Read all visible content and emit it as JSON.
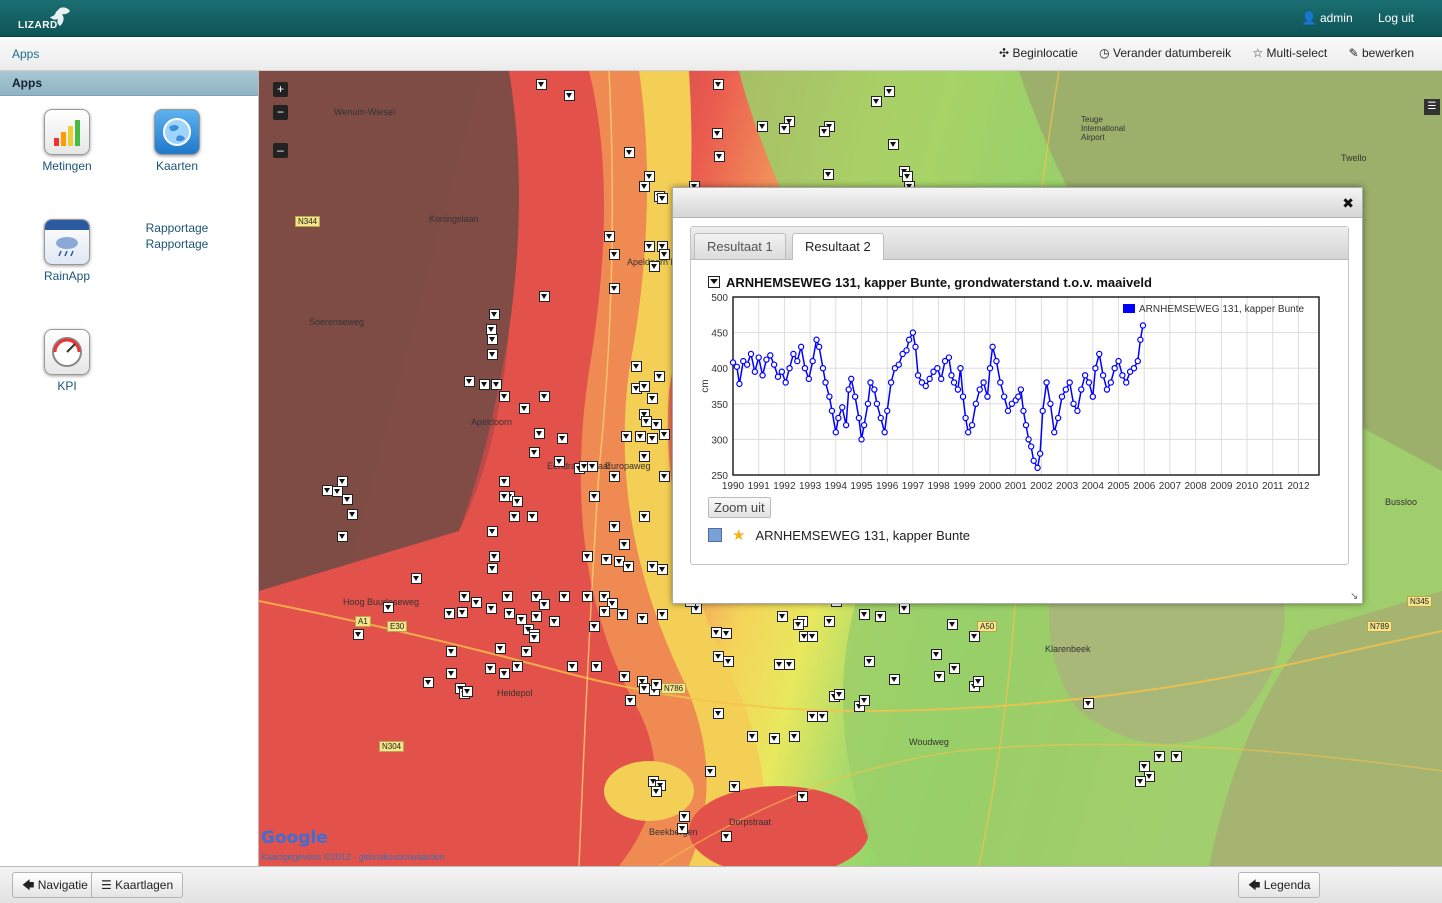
{
  "header": {
    "user": "admin",
    "logout": "Log uit",
    "logo_text": "LIZARD"
  },
  "subbar": {
    "apps_link": "Apps",
    "actions": [
      "Beginlocatie",
      "Verander datumbereik",
      "Multi-select",
      "bewerken"
    ]
  },
  "sidebar": {
    "title": "Apps",
    "apps": [
      {
        "label": "Metingen",
        "icon": "bar-chart-icon"
      },
      {
        "label": "Kaarten",
        "icon": "globe-icon"
      },
      {
        "label": "Rapportage",
        "icon": "report-icon"
      },
      {
        "label": "RainApp",
        "icon": "rain-cloud-icon"
      },
      {
        "label": "KPI",
        "icon": "gauge-icon"
      }
    ]
  },
  "map": {
    "zoom_in": "+",
    "zoom_out": "−",
    "zoom_min": "–",
    "place_labels": [
      "Wenum-Wiesel",
      "Apeldoorn",
      "Apeldoorn Noord",
      "Heidepol",
      "Klarenbeek",
      "Beekbergen",
      "Twello",
      "Teuge International Airport",
      "Bussloo",
      "Koningslaan",
      "Soerenseweg",
      "Hoog Buurloseweg",
      "Woudweg",
      "Dorpstraat",
      "Europaweg",
      "Eendrachtstraat"
    ],
    "road_tags": [
      "N344",
      "N304",
      "N786",
      "A1",
      "A50",
      "E30",
      "N345",
      "N789"
    ],
    "google_text": "Google",
    "credit": "Kaartgegevens ©2012 - gebruiksvoorwaarden"
  },
  "popup": {
    "tabs": [
      "Resultaat 1",
      "Resultaat 2"
    ],
    "active_tab": 1,
    "chart_title": "ARNHEMSEWEG 131, kapper Bunte, grondwaterstand t.o.v. maaiveld",
    "zoom_out": "Zoom uit",
    "result_label": "ARNHEMSEWEG 131, kapper Bunte"
  },
  "bottombar": {
    "navigatie": "Navigatie",
    "kaartlagen": "Kaartlagen",
    "legenda": "Legenda"
  },
  "chart_data": {
    "type": "line",
    "title": "ARNHEMSEWEG 131, kapper Bunte, grondwaterstand t.o.v. maaiveld",
    "xlabel": "",
    "ylabel": "cm",
    "xlim": [
      1990,
      2012.8
    ],
    "ylim": [
      250,
      500
    ],
    "xticks": [
      "1990",
      "1991",
      "1992",
      "1993",
      "1994",
      "1995",
      "1996",
      "1997",
      "1998",
      "1999",
      "2000",
      "2001",
      "2002",
      "2003",
      "2004",
      "2005",
      "2006",
      "2007",
      "2008",
      "2009",
      "2010",
      "2011",
      "2012"
    ],
    "yticks": [
      250,
      300,
      350,
      400,
      450,
      500
    ],
    "grid": true,
    "legend_position": "top-right",
    "series": [
      {
        "name": "ARNHEMSEWEG 131, kapper Bunte",
        "color": "#0000ff",
        "x": [
          1990.0,
          1990.15,
          1990.25,
          1990.4,
          1990.55,
          1990.7,
          1990.85,
          1991.0,
          1991.15,
          1991.3,
          1991.45,
          1991.6,
          1991.75,
          1991.9,
          1992.05,
          1992.2,
          1992.35,
          1992.5,
          1992.65,
          1992.8,
          1992.95,
          1993.1,
          1993.25,
          1993.35,
          1993.5,
          1993.6,
          1993.75,
          1993.85,
          1994.0,
          1994.1,
          1994.25,
          1994.4,
          1994.5,
          1994.6,
          1994.75,
          1994.9,
          1995.0,
          1995.1,
          1995.25,
          1995.35,
          1995.5,
          1995.6,
          1995.75,
          1995.9,
          1996.0,
          1996.15,
          1996.3,
          1996.45,
          1996.6,
          1996.75,
          1996.85,
          1997.0,
          1997.1,
          1997.2,
          1997.35,
          1997.5,
          1997.65,
          1997.8,
          1997.95,
          1998.1,
          1998.25,
          1998.4,
          1998.5,
          1998.6,
          1998.75,
          1998.85,
          1998.95,
          1999.05,
          1999.15,
          1999.3,
          1999.45,
          1999.6,
          1999.75,
          1999.9,
          2000.0,
          2000.1,
          2000.25,
          2000.4,
          2000.55,
          2000.7,
          2000.85,
          2001.0,
          2001.1,
          2001.2,
          2001.3,
          2001.4,
          2001.5,
          2001.6,
          2001.7,
          2001.85,
          2001.95,
          2002.05,
          2002.2,
          2002.35,
          2002.5,
          2002.65,
          2002.8,
          2002.95,
          2003.1,
          2003.25,
          2003.4,
          2003.55,
          2003.7,
          2003.85,
          2004.0,
          2004.1,
          2004.25,
          2004.4,
          2004.55,
          2004.7,
          2004.85,
          2005.0,
          2005.15,
          2005.3,
          2005.45,
          2005.6,
          2005.75,
          2005.85,
          2005.95
        ],
        "y": [
          408,
          402,
          378,
          410,
          405,
          420,
          395,
          415,
          390,
          412,
          418,
          405,
          388,
          395,
          380,
          400,
          420,
          410,
          430,
          400,
          385,
          410,
          440,
          430,
          400,
          380,
          360,
          340,
          310,
          330,
          345,
          320,
          370,
          385,
          360,
          330,
          300,
          320,
          350,
          380,
          370,
          350,
          330,
          310,
          340,
          380,
          400,
          405,
          420,
          425,
          440,
          450,
          430,
          390,
          380,
          375,
          385,
          395,
          400,
          385,
          410,
          415,
          390,
          380,
          370,
          400,
          360,
          330,
          310,
          320,
          350,
          370,
          380,
          360,
          400,
          430,
          410,
          380,
          360,
          340,
          350,
          355,
          360,
          370,
          340,
          320,
          300,
          290,
          270,
          260,
          280,
          340,
          380,
          350,
          310,
          330,
          360,
          370,
          380,
          350,
          340,
          370,
          390,
          380,
          360,
          400,
          420,
          390,
          370,
          380,
          400,
          410,
          390,
          380,
          395,
          400,
          410,
          440,
          460
        ]
      }
    ]
  }
}
